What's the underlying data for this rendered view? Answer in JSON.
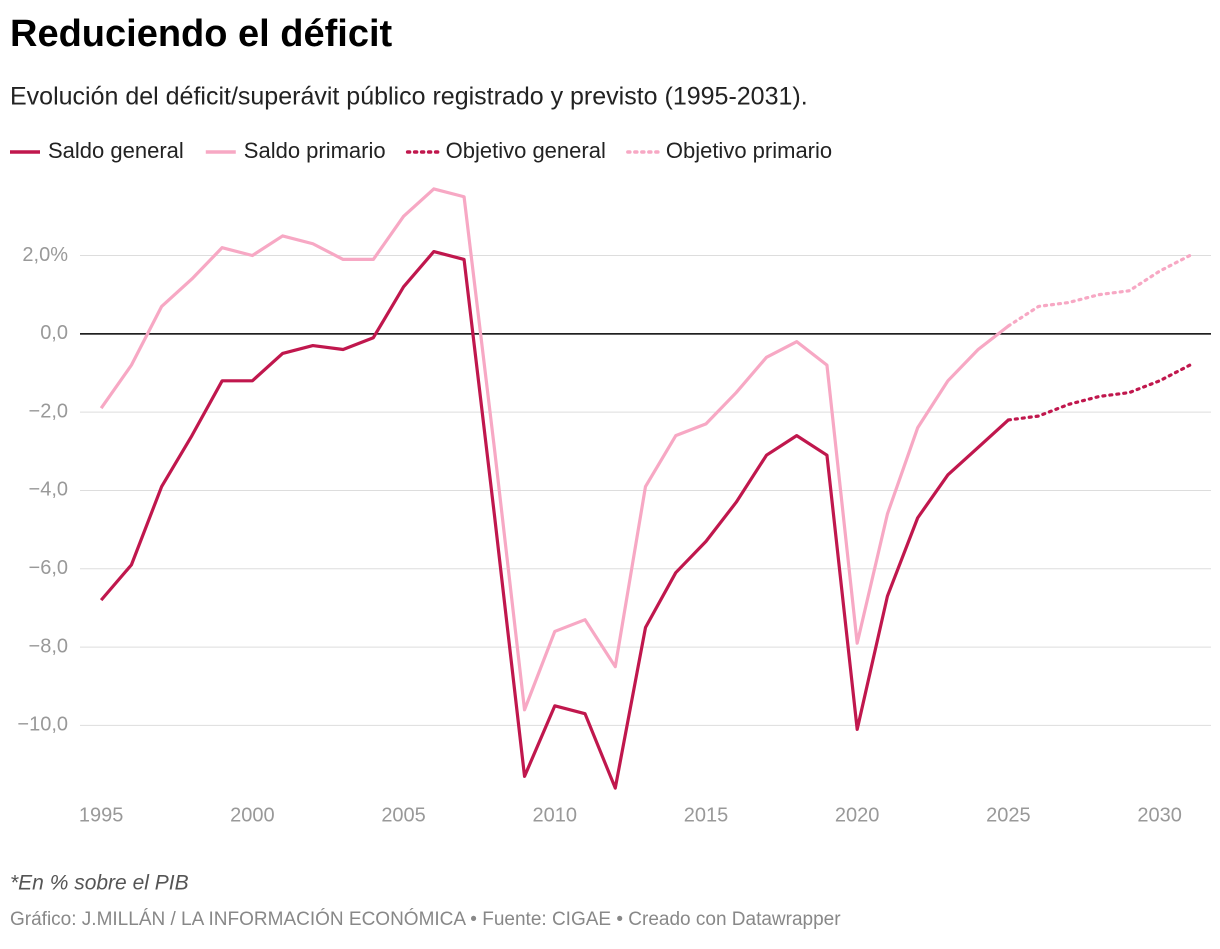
{
  "chart_data": {
    "type": "line",
    "title": "Reduciendo el déficit",
    "subtitle": "Evolución del déficit/superávit público registrado y previsto (1995-2031).",
    "note": "*En % sobre el PIB",
    "source": "Gráfico: J.MILLÁN / LA INFORMACIÓN ECONÓMICA • Fuente: CIGAE • Creado con Datawrapper",
    "x": [
      1995,
      1996,
      1997,
      1998,
      1999,
      2000,
      2001,
      2002,
      2003,
      2004,
      2005,
      2006,
      2007,
      2008,
      2009,
      2010,
      2011,
      2012,
      2013,
      2014,
      2015,
      2016,
      2017,
      2018,
      2019,
      2020,
      2021,
      2022,
      2023,
      2024,
      2025,
      2026,
      2027,
      2028,
      2029,
      2030,
      2031
    ],
    "series": [
      {
        "name": "Saldo general",
        "color": "#c0174d",
        "style": "solid",
        "values": [
          -6.8,
          -5.9,
          -3.9,
          -2.6,
          -1.2,
          -1.2,
          -0.5,
          -0.3,
          -0.4,
          -0.1,
          1.2,
          2.1,
          1.9,
          -4.6,
          -11.3,
          -9.5,
          -9.7,
          -11.6,
          -7.5,
          -6.1,
          -5.3,
          -4.3,
          -3.1,
          -2.6,
          -3.1,
          -10.1,
          -6.7,
          -4.7,
          -3.6,
          -2.9,
          -2.2,
          null,
          null,
          null,
          null,
          null,
          null
        ]
      },
      {
        "name": "Saldo primario",
        "color": "#f7a8c4",
        "style": "solid",
        "values": [
          -1.9,
          -0.8,
          0.7,
          1.4,
          2.2,
          2.0,
          2.5,
          2.3,
          1.9,
          1.9,
          3.0,
          3.7,
          3.5,
          -2.9,
          -9.6,
          -7.6,
          -7.3,
          -8.5,
          -3.9,
          -2.6,
          -2.3,
          -1.5,
          -0.6,
          -0.2,
          -0.8,
          -7.9,
          -4.6,
          -2.4,
          -1.2,
          -0.4,
          0.2,
          null,
          null,
          null,
          null,
          null,
          null
        ]
      },
      {
        "name": "Objetivo general",
        "color": "#c0174d",
        "style": "dotted",
        "values": [
          null,
          null,
          null,
          null,
          null,
          null,
          null,
          null,
          null,
          null,
          null,
          null,
          null,
          null,
          null,
          null,
          null,
          null,
          null,
          null,
          null,
          null,
          null,
          null,
          null,
          null,
          null,
          null,
          null,
          null,
          -2.2,
          -2.1,
          -1.8,
          -1.6,
          -1.5,
          -1.2,
          -0.8
        ]
      },
      {
        "name": "Objetivo primario",
        "color": "#f7a8c4",
        "style": "dotted",
        "values": [
          null,
          null,
          null,
          null,
          null,
          null,
          null,
          null,
          null,
          null,
          null,
          null,
          null,
          null,
          null,
          null,
          null,
          null,
          null,
          null,
          null,
          null,
          null,
          null,
          null,
          null,
          null,
          null,
          null,
          null,
          0.2,
          0.7,
          0.8,
          1.0,
          1.1,
          1.6,
          2.0
        ]
      }
    ],
    "xlim": [
      1994.3,
      2031.7
    ],
    "xticks": [
      1995,
      2000,
      2005,
      2010,
      2015,
      2020,
      2025,
      2030
    ],
    "ylim": [
      -11.7,
      3.8
    ],
    "yticks": [
      {
        "value": 2,
        "label": "2,0%"
      },
      {
        "value": 0,
        "label": "0,0"
      },
      {
        "value": -2,
        "label": "−2,0"
      },
      {
        "value": -4,
        "label": "−4,0"
      },
      {
        "value": -6,
        "label": "−6,0"
      },
      {
        "value": -8,
        "label": "−8,0"
      },
      {
        "value": -10,
        "label": "−10,0"
      }
    ],
    "grid": true
  }
}
